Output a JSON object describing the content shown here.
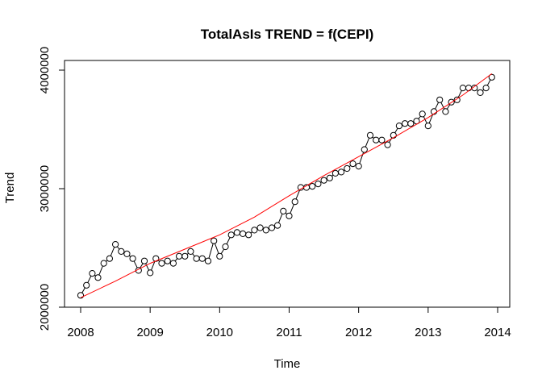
{
  "chart_data": {
    "type": "line",
    "title": "TotalAsIs TREND = f(CEPI)",
    "xlabel": "Time",
    "ylabel": "Trend",
    "xlim": [
      2008,
      2014
    ],
    "ylim": [
      2000000,
      4000000
    ],
    "x_ticks": [
      "2008",
      "2009",
      "2010",
      "2011",
      "2012",
      "2013",
      "2014"
    ],
    "y_ticks": [
      "2000000",
      "3000000",
      "4000000"
    ],
    "grid": false,
    "legend": "none",
    "series": [
      {
        "style": "points-and-lines",
        "color": "#000000",
        "x_start": 2008,
        "x_step_months": 1,
        "values": [
          2100000,
          2185000,
          2285000,
          2250000,
          2370000,
          2410000,
          2530000,
          2470000,
          2450000,
          2410000,
          2310000,
          2390000,
          2290000,
          2410000,
          2370000,
          2390000,
          2370000,
          2430000,
          2430000,
          2470000,
          2410000,
          2410000,
          2390000,
          2560000,
          2430000,
          2510000,
          2610000,
          2630000,
          2620000,
          2610000,
          2650000,
          2670000,
          2650000,
          2670000,
          2690000,
          2810000,
          2770000,
          2890000,
          3010000,
          3010000,
          3020000,
          3040000,
          3070000,
          3090000,
          3130000,
          3140000,
          3170000,
          3210000,
          3190000,
          3330000,
          3450000,
          3410000,
          3410000,
          3370000,
          3450000,
          3530000,
          3550000,
          3550000,
          3570000,
          3630000,
          3530000,
          3650000,
          3750000,
          3650000,
          3730000,
          3750000,
          3850000,
          3850000,
          3850000,
          3810000,
          3850000,
          3940000
        ]
      },
      {
        "style": "line",
        "color": "#ff0000",
        "x": [
          2008.0,
          2008.5,
          2009.0,
          2009.5,
          2010.0,
          2010.5,
          2011.0,
          2011.5,
          2012.0,
          2012.5,
          2013.0,
          2013.5,
          2013.917
        ],
        "values": [
          2080000,
          2220000,
          2370000,
          2490000,
          2610000,
          2760000,
          2940000,
          3110000,
          3270000,
          3430000,
          3600000,
          3790000,
          3970000
        ]
      }
    ]
  }
}
